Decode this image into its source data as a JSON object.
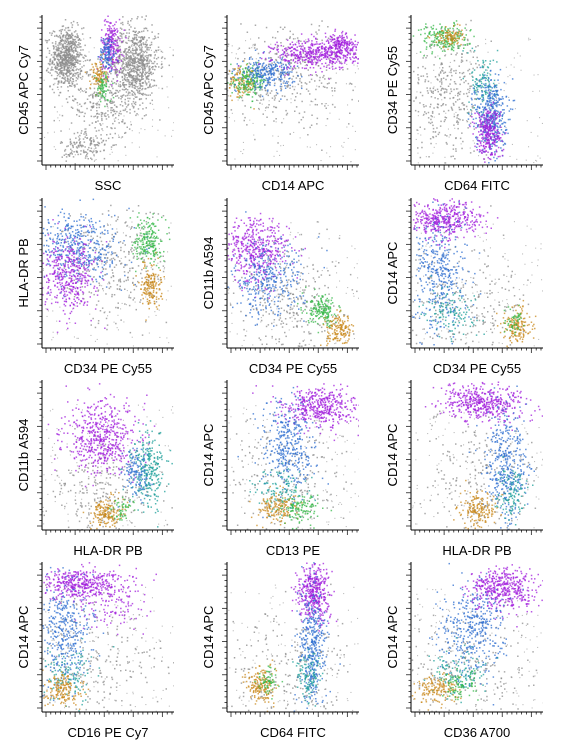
{
  "colors": {
    "gray": "#8c8c8c",
    "purple": "#a21fdc",
    "blue": "#2f6fd0",
    "teal": "#1c9f9a",
    "green": "#37b84a",
    "orange": "#c98a1e",
    "light_gray": "#bdbdbd"
  },
  "chart_data": [
    {
      "type": "scatter",
      "xlabel": "SSC",
      "ylabel": "CD45 APC Cy7",
      "populations": [
        {
          "color": "gray",
          "cx": 0.18,
          "cy": 0.72,
          "sx": 0.06,
          "sy": 0.1,
          "n": 700
        },
        {
          "color": "gray",
          "cx": 0.7,
          "cy": 0.68,
          "sx": 0.09,
          "sy": 0.13,
          "n": 800
        },
        {
          "color": "gray",
          "cx": 0.45,
          "cy": 0.42,
          "sx": 0.12,
          "sy": 0.12,
          "n": 260
        },
        {
          "color": "gray",
          "cx": 0.32,
          "cy": 0.12,
          "sx": 0.09,
          "sy": 0.06,
          "n": 140
        },
        {
          "color": "purple",
          "cx": 0.52,
          "cy": 0.8,
          "sx": 0.04,
          "sy": 0.09,
          "n": 220
        },
        {
          "color": "blue",
          "cx": 0.49,
          "cy": 0.75,
          "sx": 0.03,
          "sy": 0.06,
          "n": 110
        },
        {
          "color": "orange",
          "cx": 0.42,
          "cy": 0.6,
          "sx": 0.03,
          "sy": 0.05,
          "n": 90
        },
        {
          "color": "green",
          "cx": 0.46,
          "cy": 0.52,
          "sx": 0.03,
          "sy": 0.05,
          "n": 70
        }
      ]
    },
    {
      "type": "scatter",
      "xlabel": "CD14 APC",
      "ylabel": "CD45 APC Cy7",
      "populations": [
        {
          "color": "gray",
          "cx": 0.45,
          "cy": 0.6,
          "sx": 0.3,
          "sy": 0.16,
          "n": 380
        },
        {
          "color": "orange",
          "cx": 0.1,
          "cy": 0.55,
          "sx": 0.06,
          "sy": 0.05,
          "n": 120
        },
        {
          "color": "green",
          "cx": 0.16,
          "cy": 0.56,
          "sx": 0.07,
          "sy": 0.05,
          "n": 170
        },
        {
          "color": "blue",
          "cx": 0.3,
          "cy": 0.62,
          "sx": 0.1,
          "sy": 0.05,
          "n": 260
        },
        {
          "color": "purple",
          "cx": 0.66,
          "cy": 0.74,
          "sx": 0.16,
          "sy": 0.05,
          "n": 420
        },
        {
          "color": "purple",
          "cx": 0.85,
          "cy": 0.8,
          "sx": 0.06,
          "sy": 0.04,
          "n": 200
        }
      ]
    },
    {
      "type": "scatter",
      "xlabel": "CD64 FITC",
      "ylabel": "CD34 PE Cy55",
      "populations": [
        {
          "color": "gray",
          "cx": 0.28,
          "cy": 0.5,
          "sx": 0.15,
          "sy": 0.22,
          "n": 360
        },
        {
          "color": "green",
          "cx": 0.25,
          "cy": 0.85,
          "sx": 0.09,
          "sy": 0.05,
          "n": 200
        },
        {
          "color": "orange",
          "cx": 0.28,
          "cy": 0.86,
          "sx": 0.05,
          "sy": 0.03,
          "n": 90
        },
        {
          "color": "teal",
          "cx": 0.55,
          "cy": 0.55,
          "sx": 0.05,
          "sy": 0.1,
          "n": 120
        },
        {
          "color": "blue",
          "cx": 0.6,
          "cy": 0.34,
          "sx": 0.06,
          "sy": 0.13,
          "n": 420
        },
        {
          "color": "purple",
          "cx": 0.58,
          "cy": 0.22,
          "sx": 0.05,
          "sy": 0.09,
          "n": 280
        }
      ]
    },
    {
      "type": "scatter",
      "xlabel": "CD34 PE Cy55",
      "ylabel": "HLA-DR PB",
      "populations": [
        {
          "color": "gray",
          "cx": 0.55,
          "cy": 0.55,
          "sx": 0.2,
          "sy": 0.2,
          "n": 300
        },
        {
          "color": "blue",
          "cx": 0.28,
          "cy": 0.68,
          "sx": 0.16,
          "sy": 0.12,
          "n": 420
        },
        {
          "color": "purple",
          "cx": 0.2,
          "cy": 0.48,
          "sx": 0.1,
          "sy": 0.12,
          "n": 400
        },
        {
          "color": "green",
          "cx": 0.8,
          "cy": 0.72,
          "sx": 0.05,
          "sy": 0.08,
          "n": 200
        },
        {
          "color": "orange",
          "cx": 0.82,
          "cy": 0.42,
          "sx": 0.04,
          "sy": 0.07,
          "n": 160
        }
      ]
    },
    {
      "type": "scatter",
      "xlabel": "CD34 PE Cy55",
      "ylabel": "CD11b A594",
      "populations": [
        {
          "color": "gray",
          "cx": 0.5,
          "cy": 0.3,
          "sx": 0.22,
          "sy": 0.2,
          "n": 300
        },
        {
          "color": "purple",
          "cx": 0.22,
          "cy": 0.66,
          "sx": 0.12,
          "sy": 0.11,
          "n": 450
        },
        {
          "color": "blue",
          "cx": 0.3,
          "cy": 0.45,
          "sx": 0.14,
          "sy": 0.12,
          "n": 320
        },
        {
          "color": "green",
          "cx": 0.72,
          "cy": 0.25,
          "sx": 0.06,
          "sy": 0.05,
          "n": 170
        },
        {
          "color": "orange",
          "cx": 0.85,
          "cy": 0.12,
          "sx": 0.05,
          "sy": 0.05,
          "n": 150
        }
      ]
    },
    {
      "type": "scatter",
      "xlabel": "CD34 PE Cy55",
      "ylabel": "CD14 APC",
      "populations": [
        {
          "color": "gray",
          "cx": 0.4,
          "cy": 0.3,
          "sx": 0.25,
          "sy": 0.2,
          "n": 240
        },
        {
          "color": "purple",
          "cx": 0.25,
          "cy": 0.86,
          "sx": 0.14,
          "sy": 0.06,
          "n": 420
        },
        {
          "color": "blue",
          "cx": 0.22,
          "cy": 0.5,
          "sx": 0.1,
          "sy": 0.2,
          "n": 380
        },
        {
          "color": "teal",
          "cx": 0.3,
          "cy": 0.25,
          "sx": 0.1,
          "sy": 0.08,
          "n": 120
        },
        {
          "color": "orange",
          "cx": 0.8,
          "cy": 0.15,
          "sx": 0.05,
          "sy": 0.06,
          "n": 160
        },
        {
          "color": "green",
          "cx": 0.78,
          "cy": 0.18,
          "sx": 0.04,
          "sy": 0.05,
          "n": 50
        }
      ]
    },
    {
      "type": "scatter",
      "xlabel": "HLA-DR PB",
      "ylabel": "CD11b A594",
      "populations": [
        {
          "color": "gray",
          "cx": 0.45,
          "cy": 0.25,
          "sx": 0.2,
          "sy": 0.18,
          "n": 240
        },
        {
          "color": "purple",
          "cx": 0.45,
          "cy": 0.62,
          "sx": 0.14,
          "sy": 0.12,
          "n": 520
        },
        {
          "color": "teal",
          "cx": 0.8,
          "cy": 0.4,
          "sx": 0.06,
          "sy": 0.12,
          "n": 260
        },
        {
          "color": "blue",
          "cx": 0.7,
          "cy": 0.38,
          "sx": 0.05,
          "sy": 0.08,
          "n": 120
        },
        {
          "color": "orange",
          "cx": 0.48,
          "cy": 0.12,
          "sx": 0.06,
          "sy": 0.05,
          "n": 170
        },
        {
          "color": "green",
          "cx": 0.6,
          "cy": 0.15,
          "sx": 0.04,
          "sy": 0.04,
          "n": 50
        }
      ]
    },
    {
      "type": "scatter",
      "xlabel": "CD13 PE",
      "ylabel": "CD14 APC",
      "populations": [
        {
          "color": "gray",
          "cx": 0.45,
          "cy": 0.35,
          "sx": 0.25,
          "sy": 0.22,
          "n": 220
        },
        {
          "color": "purple",
          "cx": 0.7,
          "cy": 0.82,
          "sx": 0.14,
          "sy": 0.07,
          "n": 440
        },
        {
          "color": "blue",
          "cx": 0.45,
          "cy": 0.55,
          "sx": 0.1,
          "sy": 0.16,
          "n": 360
        },
        {
          "color": "teal",
          "cx": 0.42,
          "cy": 0.25,
          "sx": 0.1,
          "sy": 0.08,
          "n": 120
        },
        {
          "color": "orange",
          "cx": 0.38,
          "cy": 0.15,
          "sx": 0.08,
          "sy": 0.05,
          "n": 150
        },
        {
          "color": "green",
          "cx": 0.55,
          "cy": 0.15,
          "sx": 0.07,
          "sy": 0.05,
          "n": 120
        }
      ]
    },
    {
      "type": "scatter",
      "xlabel": "HLA-DR PB",
      "ylabel": "CD14 APC",
      "populations": [
        {
          "color": "gray",
          "cx": 0.5,
          "cy": 0.35,
          "sx": 0.25,
          "sy": 0.22,
          "n": 220
        },
        {
          "color": "purple",
          "cx": 0.55,
          "cy": 0.85,
          "sx": 0.16,
          "sy": 0.06,
          "n": 460
        },
        {
          "color": "blue",
          "cx": 0.72,
          "cy": 0.45,
          "sx": 0.08,
          "sy": 0.18,
          "n": 380
        },
        {
          "color": "teal",
          "cx": 0.75,
          "cy": 0.25,
          "sx": 0.06,
          "sy": 0.08,
          "n": 110
        },
        {
          "color": "orange",
          "cx": 0.5,
          "cy": 0.14,
          "sx": 0.07,
          "sy": 0.06,
          "n": 170
        }
      ]
    },
    {
      "type": "scatter",
      "xlabel": "CD16 PE Cy7",
      "ylabel": "CD14 APC",
      "populations": [
        {
          "color": "gray",
          "cx": 0.4,
          "cy": 0.35,
          "sx": 0.3,
          "sy": 0.22,
          "n": 240
        },
        {
          "color": "purple",
          "cx": 0.28,
          "cy": 0.86,
          "sx": 0.16,
          "sy": 0.05,
          "n": 420
        },
        {
          "color": "purple",
          "cx": 0.55,
          "cy": 0.72,
          "sx": 0.15,
          "sy": 0.1,
          "n": 120
        },
        {
          "color": "blue",
          "cx": 0.18,
          "cy": 0.55,
          "sx": 0.1,
          "sy": 0.18,
          "n": 360
        },
        {
          "color": "teal",
          "cx": 0.2,
          "cy": 0.25,
          "sx": 0.1,
          "sy": 0.08,
          "n": 120
        },
        {
          "color": "orange",
          "cx": 0.15,
          "cy": 0.15,
          "sx": 0.07,
          "sy": 0.05,
          "n": 160
        }
      ]
    },
    {
      "type": "scatter",
      "xlabel": "CD64 FITC",
      "ylabel": "CD14 APC",
      "populations": [
        {
          "color": "gray",
          "cx": 0.45,
          "cy": 0.3,
          "sx": 0.25,
          "sy": 0.22,
          "n": 220
        },
        {
          "color": "purple",
          "cx": 0.65,
          "cy": 0.8,
          "sx": 0.06,
          "sy": 0.1,
          "n": 420
        },
        {
          "color": "blue",
          "cx": 0.64,
          "cy": 0.45,
          "sx": 0.05,
          "sy": 0.2,
          "n": 380
        },
        {
          "color": "teal",
          "cx": 0.6,
          "cy": 0.25,
          "sx": 0.05,
          "sy": 0.08,
          "n": 100
        },
        {
          "color": "orange",
          "cx": 0.25,
          "cy": 0.18,
          "sx": 0.05,
          "sy": 0.06,
          "n": 170
        },
        {
          "color": "green",
          "cx": 0.3,
          "cy": 0.2,
          "sx": 0.04,
          "sy": 0.05,
          "n": 60
        }
      ]
    },
    {
      "type": "scatter",
      "xlabel": "CD36 A700",
      "ylabel": "CD14 APC",
      "populations": [
        {
          "color": "gray",
          "cx": 0.4,
          "cy": 0.3,
          "sx": 0.28,
          "sy": 0.22,
          "n": 240
        },
        {
          "color": "purple",
          "cx": 0.7,
          "cy": 0.82,
          "sx": 0.13,
          "sy": 0.07,
          "n": 440
        },
        {
          "color": "blue",
          "cx": 0.45,
          "cy": 0.55,
          "sx": 0.12,
          "sy": 0.15,
          "n": 380
        },
        {
          "color": "teal",
          "cx": 0.35,
          "cy": 0.25,
          "sx": 0.1,
          "sy": 0.08,
          "n": 120
        },
        {
          "color": "orange",
          "cx": 0.2,
          "cy": 0.15,
          "sx": 0.08,
          "sy": 0.05,
          "n": 150
        },
        {
          "color": "green",
          "cx": 0.35,
          "cy": 0.18,
          "sx": 0.06,
          "sy": 0.05,
          "n": 80
        }
      ]
    }
  ]
}
